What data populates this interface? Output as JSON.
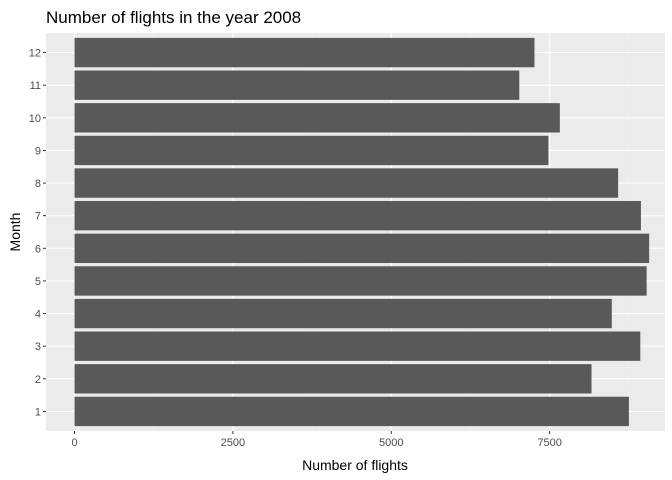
{
  "chart_data": {
    "type": "bar",
    "orientation": "horizontal",
    "title": "Number of flights in the year 2008",
    "xlabel": "Number of flights",
    "ylabel": "Month",
    "categories": [
      "1",
      "2",
      "3",
      "4",
      "5",
      "6",
      "7",
      "8",
      "9",
      "10",
      "11",
      "12"
    ],
    "values": [
      8750,
      8160,
      8930,
      8480,
      9030,
      9070,
      8940,
      8580,
      7480,
      7660,
      7020,
      7260
    ],
    "xlim": [
      -450,
      9320
    ],
    "xticks": [
      0,
      2500,
      5000,
      7500
    ],
    "xtick_labels": [
      "0",
      "2500",
      "5000",
      "7500"
    ],
    "grid": true,
    "colors": {
      "bar": "#595959",
      "panel": "#ebebeb",
      "grid_major": "#ffffff",
      "grid_minor": "#f5f5f5",
      "tick_text": "#4d4d4d",
      "tick_mark": "#333333"
    }
  }
}
